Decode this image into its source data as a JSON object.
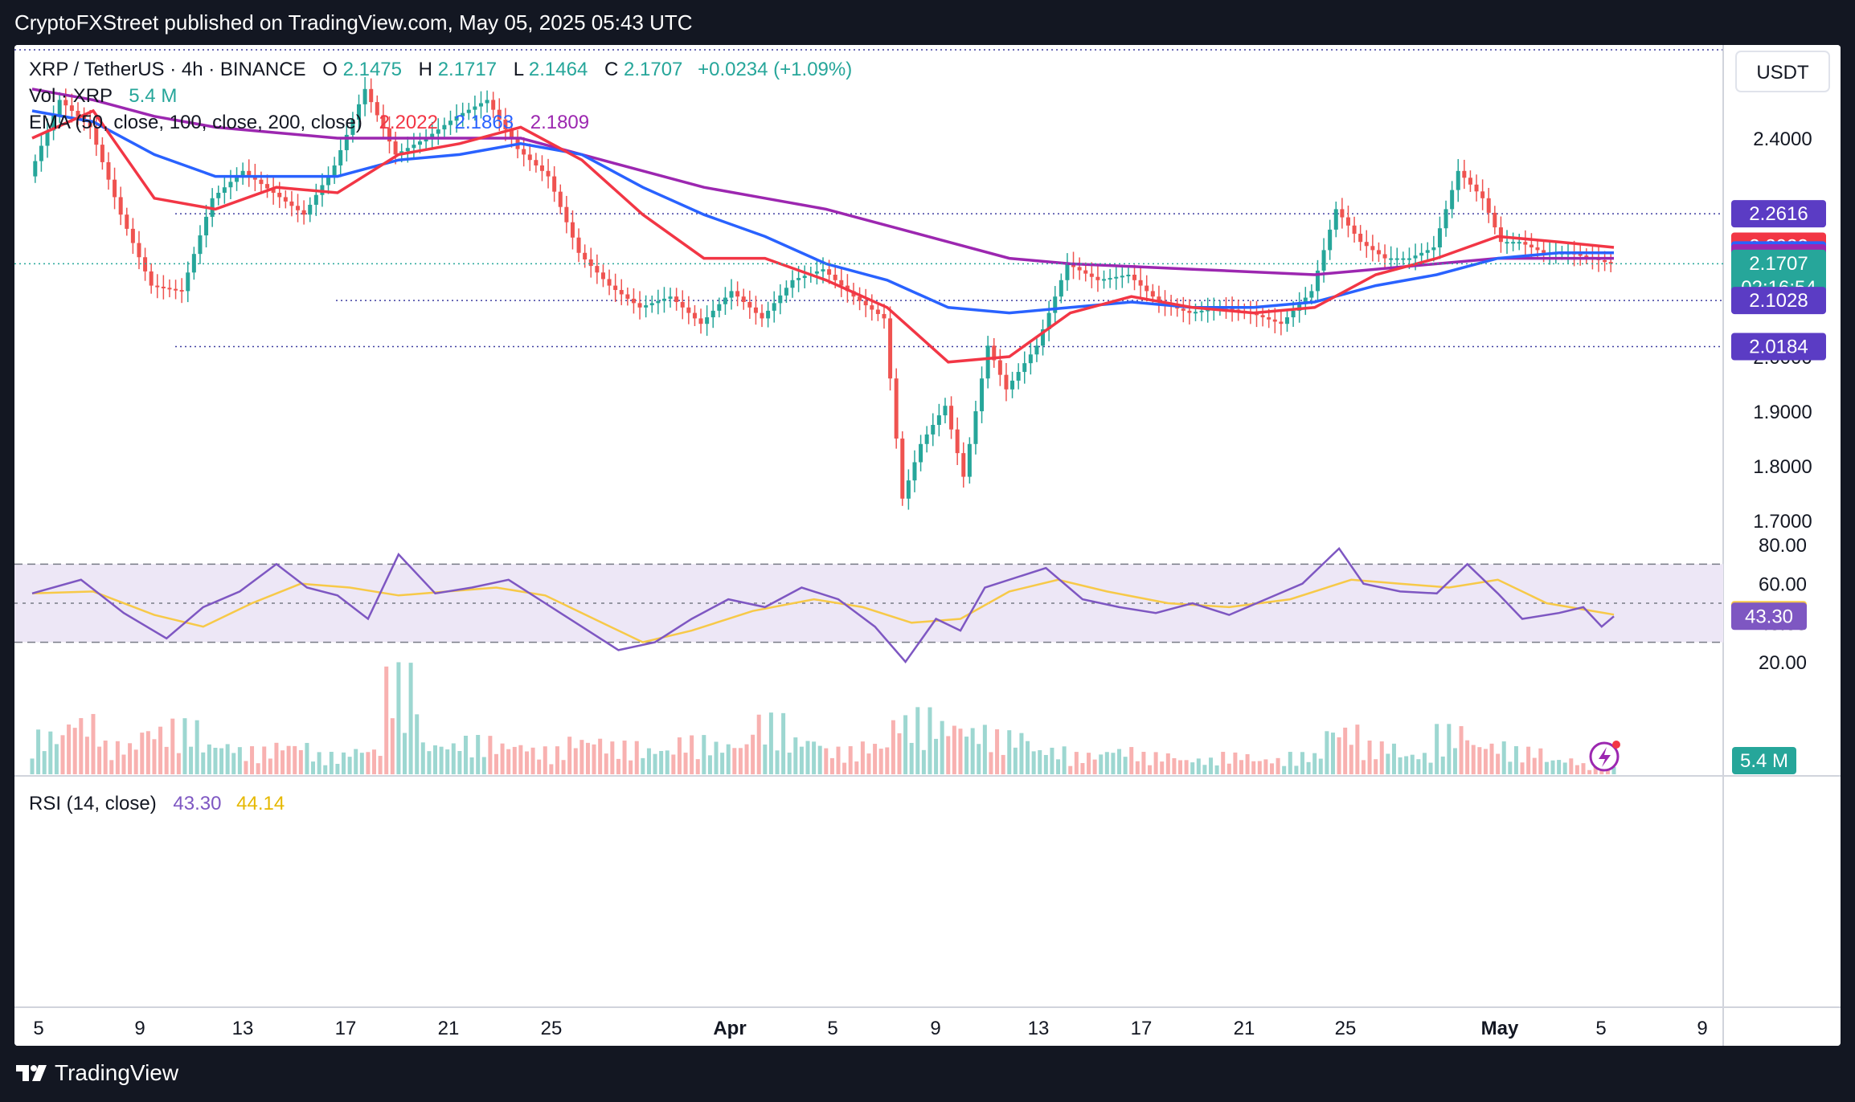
{
  "header": {
    "publisher_line": "CryptoFXStreet published on TradingView.com, May 05, 2025 05:43 UTC"
  },
  "footer": {
    "brand": "TradingView"
  },
  "legend": {
    "symbol": "XRP / TetherUS · 4h · BINANCE",
    "o_label": "O",
    "o_value": "2.1475",
    "h_label": "H",
    "h_value": "2.1717",
    "l_label": "L",
    "l_value": "2.1464",
    "c_label": "C",
    "c_value": "2.1707",
    "change": "+0.0234 (+1.09%)",
    "vol_label": "Vol · XRP",
    "vol_value": "5.4 M",
    "ema_label": "EMA (50, close, 100, close, 200, close)",
    "ema50_value": "2.2022",
    "ema100_value": "2.1863",
    "ema200_value": "2.1809"
  },
  "rsi_legend": {
    "label": "RSI (14, close)",
    "rsi_value": "43.30",
    "ma_value": "44.14"
  },
  "currency": "USDT",
  "colors": {
    "up": "#26a69a",
    "down": "#ef5350",
    "ema50": "#f23645",
    "ema100": "#2962ff",
    "ema200": "#9c27b0",
    "rsi": "#7e57c2",
    "rsi_ma": "#f7c948",
    "rsi_band": "#ede7f6",
    "grid_dotted": "#3f3fa0"
  },
  "price_badges": [
    {
      "label": "2.2616",
      "color": "#5b3cc4"
    },
    {
      "label": "2.2022",
      "color": "#f23645"
    },
    {
      "label": "2.1863",
      "color": "#2962ff"
    },
    {
      "label": "2.1809",
      "color": "#9c27b0"
    },
    {
      "label": "2.1707",
      "sub": "02:16:54",
      "color": "#26a69a"
    },
    {
      "label": "2.1028",
      "color": "#5b3cc4"
    },
    {
      "label": "2.0184",
      "color": "#5b3cc4"
    }
  ],
  "volume_badge": "5.4 M",
  "rsi_badges": [
    {
      "label": "44.14",
      "color": "#f7c948"
    },
    {
      "label": "43.30",
      "color": "#7e57c2"
    }
  ],
  "chart_data": {
    "type": "candlestick",
    "y_axis": {
      "ticks": [
        "2.4000",
        "2.0000",
        "1.9000",
        "1.8000",
        "1.7000"
      ],
      "tick_values": [
        2.4,
        2.0,
        1.9,
        1.8,
        1.7
      ]
    },
    "x_axis": {
      "ticks": [
        "5",
        "9",
        "13",
        "17",
        "21",
        "25",
        "Apr",
        "5",
        "9",
        "13",
        "17",
        "21",
        "25",
        "May",
        "5",
        "9"
      ]
    },
    "horizontal_levels": [
      2.2616,
      2.1028,
      2.0184
    ],
    "price_path": [
      {
        "x": 0,
        "y": 2.33
      },
      {
        "x": 5,
        "y": 2.47
      },
      {
        "x": 10,
        "y": 2.42
      },
      {
        "x": 15,
        "y": 2.26
      },
      {
        "x": 20,
        "y": 2.13
      },
      {
        "x": 25,
        "y": 2.12
      },
      {
        "x": 30,
        "y": 2.29
      },
      {
        "x": 35,
        "y": 2.34
      },
      {
        "x": 40,
        "y": 2.3
      },
      {
        "x": 45,
        "y": 2.26
      },
      {
        "x": 50,
        "y": 2.35
      },
      {
        "x": 55,
        "y": 2.49
      },
      {
        "x": 60,
        "y": 2.37
      },
      {
        "x": 65,
        "y": 2.4
      },
      {
        "x": 70,
        "y": 2.44
      },
      {
        "x": 75,
        "y": 2.47
      },
      {
        "x": 80,
        "y": 2.38
      },
      {
        "x": 85,
        "y": 2.33
      },
      {
        "x": 90,
        "y": 2.19
      },
      {
        "x": 95,
        "y": 2.13
      },
      {
        "x": 100,
        "y": 2.09
      },
      {
        "x": 105,
        "y": 2.11
      },
      {
        "x": 110,
        "y": 2.06
      },
      {
        "x": 115,
        "y": 2.12
      },
      {
        "x": 120,
        "y": 2.07
      },
      {
        "x": 125,
        "y": 2.14
      },
      {
        "x": 130,
        "y": 2.16
      },
      {
        "x": 135,
        "y": 2.11
      },
      {
        "x": 140,
        "y": 2.07
      },
      {
        "x": 143,
        "y": 1.74
      },
      {
        "x": 146,
        "y": 1.84
      },
      {
        "x": 150,
        "y": 1.91
      },
      {
        "x": 153,
        "y": 1.78
      },
      {
        "x": 157,
        "y": 2.02
      },
      {
        "x": 160,
        "y": 1.94
      },
      {
        "x": 165,
        "y": 2.02
      },
      {
        "x": 170,
        "y": 2.17
      },
      {
        "x": 175,
        "y": 2.14
      },
      {
        "x": 180,
        "y": 2.15
      },
      {
        "x": 185,
        "y": 2.1
      },
      {
        "x": 190,
        "y": 2.08
      },
      {
        "x": 195,
        "y": 2.09
      },
      {
        "x": 200,
        "y": 2.08
      },
      {
        "x": 205,
        "y": 2.06
      },
      {
        "x": 210,
        "y": 2.12
      },
      {
        "x": 214,
        "y": 2.27
      },
      {
        "x": 218,
        "y": 2.21
      },
      {
        "x": 222,
        "y": 2.18
      },
      {
        "x": 226,
        "y": 2.18
      },
      {
        "x": 230,
        "y": 2.2
      },
      {
        "x": 234,
        "y": 2.34
      },
      {
        "x": 238,
        "y": 2.29
      },
      {
        "x": 241,
        "y": 2.21
      },
      {
        "x": 244,
        "y": 2.21
      },
      {
        "x": 248,
        "y": 2.19
      },
      {
        "x": 252,
        "y": 2.19
      },
      {
        "x": 256,
        "y": 2.18
      },
      {
        "x": 259,
        "y": 2.17
      }
    ],
    "ema50_path": [
      {
        "x": 0,
        "y": 2.4
      },
      {
        "x": 10,
        "y": 2.45
      },
      {
        "x": 20,
        "y": 2.29
      },
      {
        "x": 30,
        "y": 2.27
      },
      {
        "x": 40,
        "y": 2.31
      },
      {
        "x": 50,
        "y": 2.3
      },
      {
        "x": 60,
        "y": 2.37
      },
      {
        "x": 70,
        "y": 2.39
      },
      {
        "x": 80,
        "y": 2.42
      },
      {
        "x": 90,
        "y": 2.36
      },
      {
        "x": 100,
        "y": 2.26
      },
      {
        "x": 110,
        "y": 2.18
      },
      {
        "x": 120,
        "y": 2.18
      },
      {
        "x": 130,
        "y": 2.14
      },
      {
        "x": 140,
        "y": 2.09
      },
      {
        "x": 150,
        "y": 1.99
      },
      {
        "x": 160,
        "y": 2.0
      },
      {
        "x": 170,
        "y": 2.08
      },
      {
        "x": 180,
        "y": 2.11
      },
      {
        "x": 190,
        "y": 2.09
      },
      {
        "x": 200,
        "y": 2.08
      },
      {
        "x": 210,
        "y": 2.09
      },
      {
        "x": 220,
        "y": 2.15
      },
      {
        "x": 230,
        "y": 2.18
      },
      {
        "x": 240,
        "y": 2.22
      },
      {
        "x": 250,
        "y": 2.21
      },
      {
        "x": 259,
        "y": 2.2
      }
    ],
    "ema100_path": [
      {
        "x": 0,
        "y": 2.45
      },
      {
        "x": 10,
        "y": 2.43
      },
      {
        "x": 20,
        "y": 2.37
      },
      {
        "x": 30,
        "y": 2.33
      },
      {
        "x": 40,
        "y": 2.33
      },
      {
        "x": 50,
        "y": 2.33
      },
      {
        "x": 60,
        "y": 2.36
      },
      {
        "x": 70,
        "y": 2.37
      },
      {
        "x": 80,
        "y": 2.39
      },
      {
        "x": 90,
        "y": 2.37
      },
      {
        "x": 100,
        "y": 2.31
      },
      {
        "x": 110,
        "y": 2.26
      },
      {
        "x": 120,
        "y": 2.22
      },
      {
        "x": 130,
        "y": 2.17
      },
      {
        "x": 140,
        "y": 2.14
      },
      {
        "x": 150,
        "y": 2.09
      },
      {
        "x": 160,
        "y": 2.08
      },
      {
        "x": 170,
        "y": 2.09
      },
      {
        "x": 180,
        "y": 2.1
      },
      {
        "x": 190,
        "y": 2.09
      },
      {
        "x": 200,
        "y": 2.09
      },
      {
        "x": 210,
        "y": 2.1
      },
      {
        "x": 220,
        "y": 2.13
      },
      {
        "x": 230,
        "y": 2.15
      },
      {
        "x": 240,
        "y": 2.18
      },
      {
        "x": 250,
        "y": 2.19
      },
      {
        "x": 259,
        "y": 2.19
      }
    ],
    "ema200_path": [
      {
        "x": 0,
        "y": 2.49
      },
      {
        "x": 10,
        "y": 2.47
      },
      {
        "x": 20,
        "y": 2.44
      },
      {
        "x": 30,
        "y": 2.42
      },
      {
        "x": 40,
        "y": 2.41
      },
      {
        "x": 50,
        "y": 2.4
      },
      {
        "x": 60,
        "y": 2.4
      },
      {
        "x": 70,
        "y": 2.4
      },
      {
        "x": 80,
        "y": 2.4
      },
      {
        "x": 90,
        "y": 2.37
      },
      {
        "x": 100,
        "y": 2.34
      },
      {
        "x": 110,
        "y": 2.31
      },
      {
        "x": 120,
        "y": 2.29
      },
      {
        "x": 130,
        "y": 2.27
      },
      {
        "x": 140,
        "y": 2.24
      },
      {
        "x": 150,
        "y": 2.21
      },
      {
        "x": 160,
        "y": 2.18
      },
      {
        "x": 170,
        "y": 2.17
      },
      {
        "x": 180,
        "y": 2.165
      },
      {
        "x": 190,
        "y": 2.16
      },
      {
        "x": 200,
        "y": 2.155
      },
      {
        "x": 210,
        "y": 2.15
      },
      {
        "x": 220,
        "y": 2.16
      },
      {
        "x": 230,
        "y": 2.17
      },
      {
        "x": 240,
        "y": 2.18
      },
      {
        "x": 250,
        "y": 2.18
      },
      {
        "x": 259,
        "y": 2.18
      }
    ],
    "rsi": {
      "ticks": [
        "80.00",
        "60.00",
        "40.00",
        "20.00"
      ],
      "tick_values": [
        80,
        60,
        40,
        20
      ],
      "bands": [
        70,
        50,
        30
      ],
      "rsi_path": [
        {
          "x": 0,
          "y": 55
        },
        {
          "x": 8,
          "y": 62
        },
        {
          "x": 15,
          "y": 45
        },
        {
          "x": 22,
          "y": 32
        },
        {
          "x": 28,
          "y": 48
        },
        {
          "x": 34,
          "y": 56
        },
        {
          "x": 40,
          "y": 70
        },
        {
          "x": 45,
          "y": 58
        },
        {
          "x": 50,
          "y": 54
        },
        {
          "x": 55,
          "y": 42
        },
        {
          "x": 60,
          "y": 75
        },
        {
          "x": 66,
          "y": 55
        },
        {
          "x": 72,
          "y": 58
        },
        {
          "x": 78,
          "y": 62
        },
        {
          "x": 84,
          "y": 50
        },
        {
          "x": 90,
          "y": 38
        },
        {
          "x": 96,
          "y": 26
        },
        {
          "x": 102,
          "y": 30
        },
        {
          "x": 108,
          "y": 42
        },
        {
          "x": 114,
          "y": 52
        },
        {
          "x": 120,
          "y": 48
        },
        {
          "x": 126,
          "y": 58
        },
        {
          "x": 132,
          "y": 52
        },
        {
          "x": 138,
          "y": 38
        },
        {
          "x": 143,
          "y": 20
        },
        {
          "x": 148,
          "y": 42
        },
        {
          "x": 152,
          "y": 36
        },
        {
          "x": 156,
          "y": 58
        },
        {
          "x": 162,
          "y": 64
        },
        {
          "x": 166,
          "y": 68
        },
        {
          "x": 172,
          "y": 52
        },
        {
          "x": 178,
          "y": 48
        },
        {
          "x": 184,
          "y": 45
        },
        {
          "x": 190,
          "y": 50
        },
        {
          "x": 196,
          "y": 44
        },
        {
          "x": 202,
          "y": 52
        },
        {
          "x": 208,
          "y": 60
        },
        {
          "x": 214,
          "y": 78
        },
        {
          "x": 218,
          "y": 60
        },
        {
          "x": 224,
          "y": 56
        },
        {
          "x": 230,
          "y": 55
        },
        {
          "x": 235,
          "y": 70
        },
        {
          "x": 240,
          "y": 55
        },
        {
          "x": 244,
          "y": 42
        },
        {
          "x": 250,
          "y": 45
        },
        {
          "x": 254,
          "y": 48
        },
        {
          "x": 257,
          "y": 38
        },
        {
          "x": 259,
          "y": 43.3
        }
      ],
      "ma_path": [
        {
          "x": 0,
          "y": 55
        },
        {
          "x": 10,
          "y": 56
        },
        {
          "x": 20,
          "y": 44
        },
        {
          "x": 28,
          "y": 38
        },
        {
          "x": 36,
          "y": 50
        },
        {
          "x": 44,
          "y": 60
        },
        {
          "x": 52,
          "y": 58
        },
        {
          "x": 60,
          "y": 54
        },
        {
          "x": 68,
          "y": 56
        },
        {
          "x": 76,
          "y": 58
        },
        {
          "x": 84,
          "y": 54
        },
        {
          "x": 92,
          "y": 42
        },
        {
          "x": 100,
          "y": 30
        },
        {
          "x": 108,
          "y": 36
        },
        {
          "x": 118,
          "y": 46
        },
        {
          "x": 128,
          "y": 52
        },
        {
          "x": 136,
          "y": 48
        },
        {
          "x": 144,
          "y": 40
        },
        {
          "x": 152,
          "y": 42
        },
        {
          "x": 160,
          "y": 56
        },
        {
          "x": 168,
          "y": 62
        },
        {
          "x": 176,
          "y": 56
        },
        {
          "x": 186,
          "y": 50
        },
        {
          "x": 196,
          "y": 48
        },
        {
          "x": 206,
          "y": 52
        },
        {
          "x": 216,
          "y": 62
        },
        {
          "x": 224,
          "y": 60
        },
        {
          "x": 232,
          "y": 58
        },
        {
          "x": 240,
          "y": 62
        },
        {
          "x": 248,
          "y": 50
        },
        {
          "x": 259,
          "y": 44.14
        }
      ]
    },
    "volume": [
      {
        "x": 2,
        "v": 0.4
      },
      {
        "x": 8,
        "v": 0.55
      },
      {
        "x": 14,
        "v": 0.3
      },
      {
        "x": 20,
        "v": 0.45
      },
      {
        "x": 24,
        "v": 0.5
      },
      {
        "x": 30,
        "v": 0.3
      },
      {
        "x": 36,
        "v": 0.25
      },
      {
        "x": 42,
        "v": 0.3
      },
      {
        "x": 48,
        "v": 0.2
      },
      {
        "x": 54,
        "v": 0.25
      },
      {
        "x": 60,
        "v": 1.0
      },
      {
        "x": 66,
        "v": 0.3
      },
      {
        "x": 72,
        "v": 0.35
      },
      {
        "x": 78,
        "v": 0.3
      },
      {
        "x": 84,
        "v": 0.25
      },
      {
        "x": 90,
        "v": 0.35
      },
      {
        "x": 96,
        "v": 0.3
      },
      {
        "x": 102,
        "v": 0.25
      },
      {
        "x": 108,
        "v": 0.35
      },
      {
        "x": 114,
        "v": 0.3
      },
      {
        "x": 120,
        "v": 0.55
      },
      {
        "x": 126,
        "v": 0.35
      },
      {
        "x": 132,
        "v": 0.25
      },
      {
        "x": 138,
        "v": 0.3
      },
      {
        "x": 143,
        "v": 0.55
      },
      {
        "x": 146,
        "v": 0.6
      },
      {
        "x": 150,
        "v": 0.5
      },
      {
        "x": 155,
        "v": 0.45
      },
      {
        "x": 160,
        "v": 0.4
      },
      {
        "x": 166,
        "v": 0.25
      },
      {
        "x": 172,
        "v": 0.2
      },
      {
        "x": 178,
        "v": 0.25
      },
      {
        "x": 184,
        "v": 0.2
      },
      {
        "x": 190,
        "v": 0.15
      },
      {
        "x": 196,
        "v": 0.2
      },
      {
        "x": 202,
        "v": 0.15
      },
      {
        "x": 208,
        "v": 0.2
      },
      {
        "x": 214,
        "v": 0.45
      },
      {
        "x": 220,
        "v": 0.3
      },
      {
        "x": 226,
        "v": 0.2
      },
      {
        "x": 232,
        "v": 0.45
      },
      {
        "x": 238,
        "v": 0.3
      },
      {
        "x": 244,
        "v": 0.25
      },
      {
        "x": 250,
        "v": 0.15
      },
      {
        "x": 256,
        "v": 0.1
      }
    ]
  }
}
